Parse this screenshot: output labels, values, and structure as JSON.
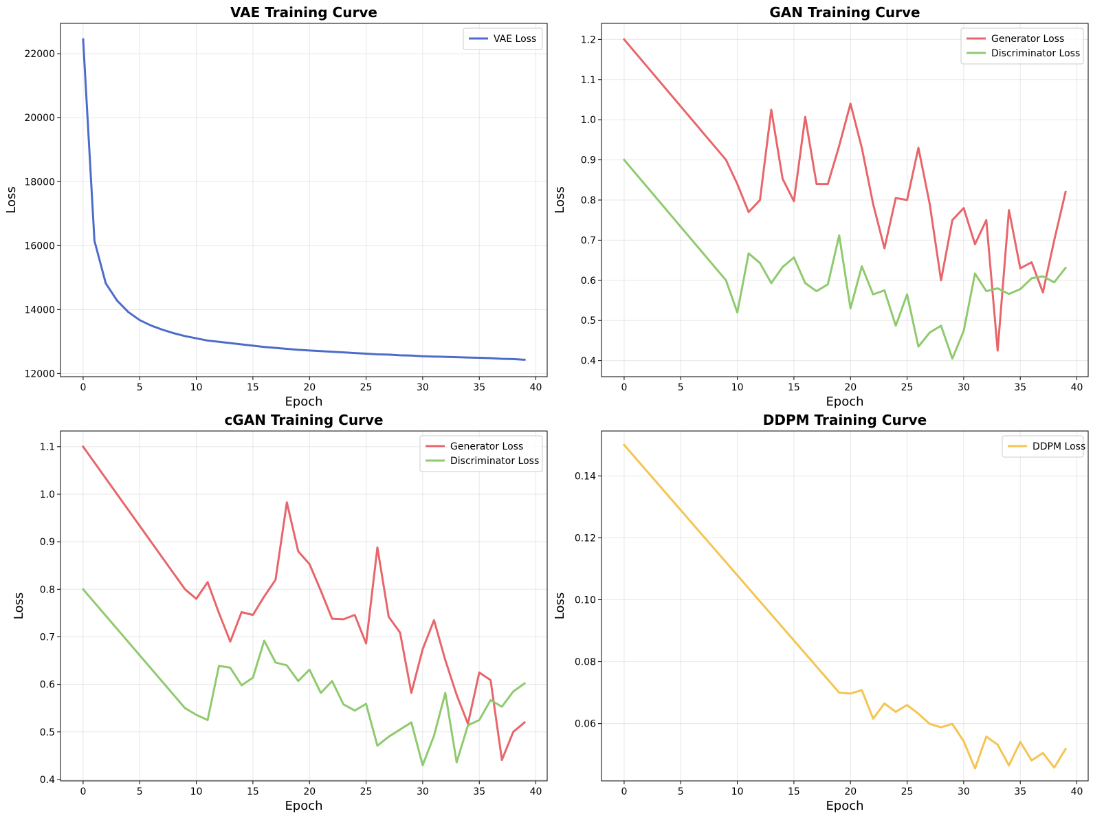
{
  "chart_data": [
    {
      "type": "line",
      "title": "VAE Training Curve",
      "xlabel": "Epoch",
      "ylabel": "Loss",
      "xlim": [
        -2,
        41
      ],
      "ylim": [
        11900,
        22950
      ],
      "xticks": [
        0,
        5,
        10,
        15,
        20,
        25,
        30,
        35,
        40
      ],
      "yticks": [
        12000,
        14000,
        16000,
        18000,
        20000,
        22000
      ],
      "grid": true,
      "legend": "top-right",
      "series": [
        {
          "name": "VAE Loss",
          "color": "#4c6cc9",
          "x": [
            0,
            1,
            2,
            3,
            4,
            5,
            6,
            7,
            8,
            9,
            10,
            11,
            12,
            13,
            14,
            15,
            16,
            17,
            18,
            19,
            20,
            21,
            22,
            23,
            24,
            25,
            26,
            27,
            28,
            29,
            30,
            31,
            32,
            33,
            34,
            35,
            36,
            37,
            38,
            39
          ],
          "values": [
            22450,
            16150,
            14820,
            14280,
            13920,
            13670,
            13500,
            13370,
            13260,
            13170,
            13100,
            13030,
            12990,
            12950,
            12910,
            12870,
            12830,
            12800,
            12770,
            12740,
            12720,
            12700,
            12680,
            12660,
            12640,
            12620,
            12600,
            12590,
            12570,
            12560,
            12540,
            12530,
            12520,
            12510,
            12500,
            12490,
            12480,
            12460,
            12450,
            12430
          ]
        }
      ]
    },
    {
      "type": "line",
      "title": "GAN Training Curve",
      "xlabel": "Epoch",
      "ylabel": "Loss",
      "xlim": [
        -2,
        41
      ],
      "ylim": [
        0.36,
        1.24
      ],
      "xticks": [
        0,
        5,
        10,
        15,
        20,
        25,
        30,
        35,
        40
      ],
      "yticks": [
        0.4,
        0.5,
        0.6,
        0.7,
        0.8,
        0.9,
        1.0,
        1.1,
        1.2
      ],
      "ytick_labels": [
        "0.4",
        "0.5",
        "0.6",
        "0.7",
        "0.8",
        "0.9",
        "1.0",
        "1.1",
        "1.2"
      ],
      "grid": true,
      "legend": "top-right",
      "series": [
        {
          "name": "Generator Loss",
          "color": "#e8656a",
          "x": [
            0,
            9,
            10,
            11,
            12,
            13,
            14,
            15,
            16,
            17,
            18,
            19,
            20,
            21,
            22,
            23,
            24,
            25,
            26,
            27,
            28,
            29,
            30,
            31,
            32,
            33,
            34,
            35,
            36,
            37,
            38,
            39
          ],
          "values": [
            1.2,
            0.9,
            0.84,
            0.77,
            0.8,
            1.025,
            0.853,
            0.797,
            1.007,
            0.84,
            0.84,
            0.935,
            1.04,
            0.93,
            0.79,
            0.68,
            0.805,
            0.8,
            0.93,
            0.79,
            0.6,
            0.75,
            0.78,
            0.69,
            0.75,
            0.425,
            0.775,
            0.63,
            0.645,
            0.57,
            0.7,
            0.82
          ]
        },
        {
          "name": "Discriminator Loss",
          "color": "#8fca6e",
          "x": [
            0,
            9,
            10,
            11,
            12,
            13,
            14,
            15,
            16,
            17,
            18,
            19,
            20,
            21,
            22,
            23,
            24,
            25,
            26,
            27,
            28,
            29,
            30,
            31,
            32,
            33,
            34,
            35,
            36,
            37,
            38,
            39
          ],
          "values": [
            0.9,
            0.6,
            0.52,
            0.667,
            0.643,
            0.593,
            0.633,
            0.657,
            0.593,
            0.573,
            0.59,
            0.712,
            0.53,
            0.635,
            0.565,
            0.575,
            0.487,
            0.565,
            0.435,
            0.47,
            0.487,
            0.405,
            0.474,
            0.617,
            0.573,
            0.58,
            0.566,
            0.578,
            0.605,
            0.61,
            0.595,
            0.631
          ]
        }
      ]
    },
    {
      "type": "line",
      "title": "cGAN Training Curve",
      "xlabel": "Epoch",
      "ylabel": "Loss",
      "xlim": [
        -2,
        41
      ],
      "ylim": [
        0.397,
        1.133
      ],
      "xticks": [
        0,
        5,
        10,
        15,
        20,
        25,
        30,
        35,
        40
      ],
      "yticks": [
        0.4,
        0.5,
        0.6,
        0.7,
        0.8,
        0.9,
        1.0,
        1.1
      ],
      "ytick_labels": [
        "0.4",
        "0.5",
        "0.6",
        "0.7",
        "0.8",
        "0.9",
        "1.0",
        "1.1"
      ],
      "grid": true,
      "legend": "top-right",
      "series": [
        {
          "name": "Generator Loss",
          "color": "#e8656a",
          "x": [
            0,
            9,
            10,
            11,
            12,
            13,
            14,
            15,
            16,
            17,
            18,
            19,
            20,
            21,
            22,
            23,
            24,
            25,
            26,
            27,
            28,
            29,
            30,
            31,
            32,
            33,
            34,
            35,
            36,
            37,
            38,
            39
          ],
          "values": [
            1.1,
            0.8,
            0.78,
            0.815,
            0.75,
            0.69,
            0.752,
            0.746,
            0.785,
            0.82,
            0.983,
            0.88,
            0.853,
            0.797,
            0.738,
            0.737,
            0.746,
            0.686,
            0.888,
            0.742,
            0.709,
            0.582,
            0.674,
            0.735,
            0.651,
            0.578,
            0.517,
            0.625,
            0.609,
            0.441,
            0.5,
            0.52
          ]
        },
        {
          "name": "Discriminator Loss",
          "color": "#8fca6e",
          "x": [
            0,
            9,
            10,
            11,
            12,
            13,
            14,
            15,
            16,
            17,
            18,
            19,
            20,
            21,
            22,
            23,
            24,
            25,
            26,
            27,
            28,
            29,
            30,
            31,
            32,
            33,
            34,
            35,
            36,
            37,
            38,
            39
          ],
          "values": [
            0.8,
            0.55,
            0.536,
            0.525,
            0.639,
            0.635,
            0.598,
            0.614,
            0.692,
            0.646,
            0.64,
            0.607,
            0.631,
            0.582,
            0.607,
            0.558,
            0.545,
            0.559,
            0.471,
            0.49,
            0.505,
            0.52,
            0.43,
            0.492,
            0.582,
            0.436,
            0.514,
            0.525,
            0.567,
            0.553,
            0.585,
            0.602
          ]
        }
      ]
    },
    {
      "type": "line",
      "title": "DDPM Training Curve",
      "xlabel": "Epoch",
      "ylabel": "Loss",
      "xlim": [
        -2,
        41
      ],
      "ylim": [
        0.0415,
        0.1545
      ],
      "xticks": [
        0,
        5,
        10,
        15,
        20,
        25,
        30,
        35,
        40
      ],
      "yticks": [
        0.06,
        0.08,
        0.1,
        0.12,
        0.14
      ],
      "ytick_labels": [
        "0.06",
        "0.08",
        "0.10",
        "0.12",
        "0.14"
      ],
      "grid": true,
      "legend": "top-right",
      "series": [
        {
          "name": "DDPM Loss",
          "color": "#f5c452",
          "x": [
            0,
            19,
            20,
            21,
            22,
            23,
            24,
            25,
            26,
            27,
            28,
            29,
            30,
            31,
            32,
            33,
            34,
            35,
            36,
            37,
            38,
            39
          ],
          "values": [
            0.15,
            0.07,
            0.0697,
            0.0708,
            0.0616,
            0.0665,
            0.0638,
            0.066,
            0.0632,
            0.0599,
            0.0588,
            0.0599,
            0.0543,
            0.0455,
            0.0558,
            0.0532,
            0.0465,
            0.0541,
            0.0481,
            0.0505,
            0.0458,
            0.0518
          ]
        }
      ]
    }
  ]
}
